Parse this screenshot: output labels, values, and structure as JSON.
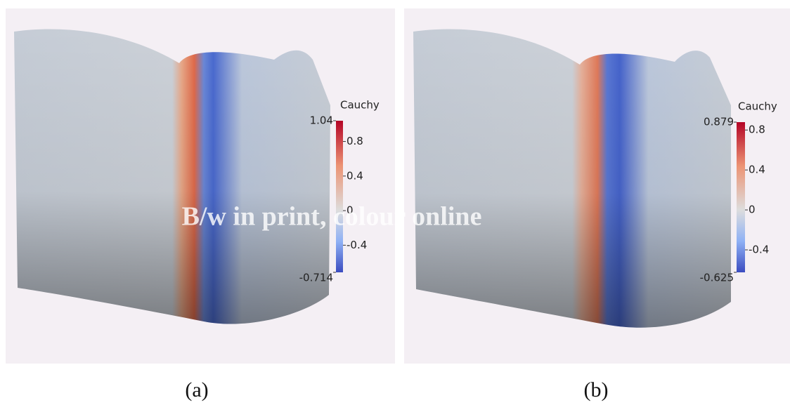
{
  "panels": [
    {
      "caption": "(a)",
      "colorbar": {
        "title": "Cauchy",
        "max": 1.04,
        "min": -0.714,
        "ticks": [
          0.8,
          0.4,
          0,
          -0.4
        ]
      }
    },
    {
      "caption": "(b)",
      "colorbar": {
        "title": "Cauchy",
        "max": 0.879,
        "min": -0.625,
        "ticks": [
          0.8,
          0.4,
          0,
          -0.4
        ]
      }
    }
  ],
  "watermark": "B/w in print, colour online"
}
